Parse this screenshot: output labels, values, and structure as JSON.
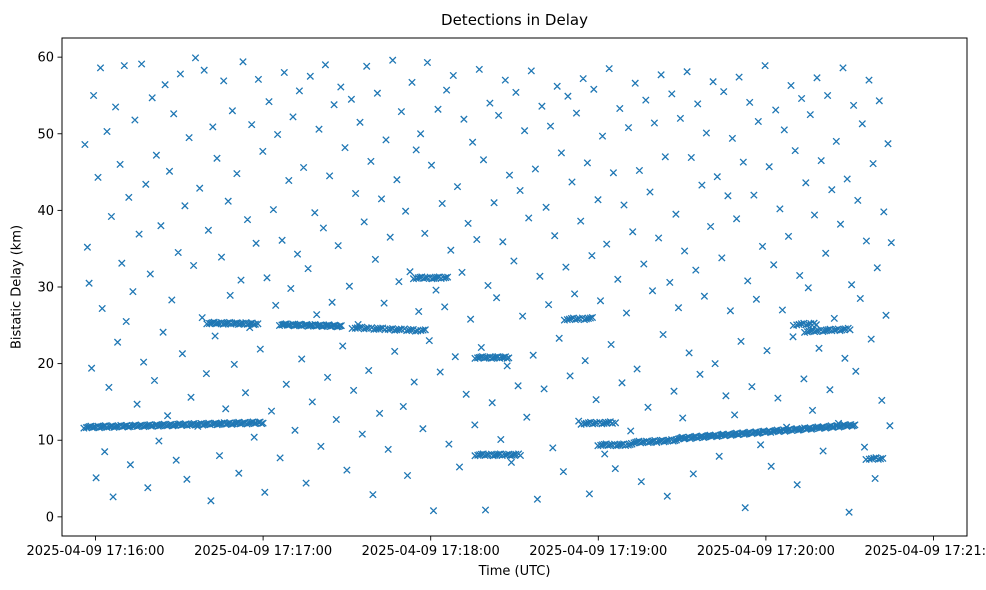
{
  "chart_data": {
    "type": "scatter",
    "title": "Detections in Delay",
    "xlabel": "Time (UTC)",
    "ylabel": "Bistatic Delay (km)",
    "marker": "x",
    "marker_color": "#1f77b4",
    "legend": "none",
    "grid": false,
    "x_unit": "seconds after 2025-04-09 17:15:00 UTC",
    "xlim": [
      48,
      372
    ],
    "ylim": [
      -2.5,
      62.5
    ],
    "y_ticks": [
      0,
      10,
      20,
      30,
      40,
      50,
      60
    ],
    "x_tick_values": [
      60,
      120,
      180,
      240,
      300,
      360
    ],
    "x_tick_labels": [
      "2025-04-09 17:16:00",
      "2025-04-09 17:17:00",
      "2025-04-09 17:18:00",
      "2025-04-09 17:19:00",
      "2025-04-09 17:20:00",
      "2025-04-09 17:21:00"
    ],
    "tracks": [
      {
        "x0": 56,
        "x1": 120,
        "y0": 11.7,
        "y1": 12.3,
        "n": 110
      },
      {
        "x0": 100,
        "x1": 118,
        "y0": 25.3,
        "y1": 25.2,
        "n": 30
      },
      {
        "x0": 126,
        "x1": 148,
        "y0": 25.1,
        "y1": 24.9,
        "n": 40
      },
      {
        "x0": 152,
        "x1": 178,
        "y0": 24.7,
        "y1": 24.3,
        "n": 32
      },
      {
        "x0": 174,
        "x1": 186,
        "y0": 31.2,
        "y1": 31.2,
        "n": 18
      },
      {
        "x0": 196,
        "x1": 208,
        "y0": 20.8,
        "y1": 20.8,
        "n": 20
      },
      {
        "x0": 196,
        "x1": 212,
        "y0": 8.1,
        "y1": 8.1,
        "n": 24
      },
      {
        "x0": 228,
        "x1": 238,
        "y0": 25.8,
        "y1": 25.9,
        "n": 14
      },
      {
        "x0": 234,
        "x1": 246,
        "y0": 12.2,
        "y1": 12.3,
        "n": 16
      },
      {
        "x0": 240,
        "x1": 252,
        "y0": 9.4,
        "y1": 9.4,
        "n": 18
      },
      {
        "x0": 252,
        "x1": 268,
        "y0": 9.7,
        "y1": 10.0,
        "n": 26
      },
      {
        "x0": 268,
        "x1": 332,
        "y0": 10.2,
        "y1": 12.0,
        "n": 120
      },
      {
        "x0": 310,
        "x1": 318,
        "y0": 25.1,
        "y1": 25.2,
        "n": 10
      },
      {
        "x0": 314,
        "x1": 330,
        "y0": 24.2,
        "y1": 24.5,
        "n": 24
      },
      {
        "x0": 336,
        "x1": 342,
        "y0": 7.6,
        "y1": 7.6,
        "n": 8
      }
    ],
    "background_points": [
      [
        56.2,
        48.6
      ],
      [
        57.1,
        35.2
      ],
      [
        57.7,
        30.5
      ],
      [
        58.6,
        19.4
      ],
      [
        59.3,
        55.0
      ],
      [
        60.2,
        5.1
      ],
      [
        60.9,
        44.3
      ],
      [
        61.8,
        58.6
      ],
      [
        62.4,
        27.2
      ],
      [
        63.3,
        8.5
      ],
      [
        64.1,
        50.3
      ],
      [
        64.8,
        16.9
      ],
      [
        65.7,
        39.2
      ],
      [
        66.3,
        2.6
      ],
      [
        67.2,
        53.5
      ],
      [
        67.9,
        22.8
      ],
      [
        68.8,
        46.0
      ],
      [
        69.4,
        33.1
      ],
      [
        70.3,
        58.9
      ],
      [
        71.0,
        25.5
      ],
      [
        71.9,
        41.7
      ],
      [
        72.5,
        6.8
      ],
      [
        73.4,
        29.4
      ],
      [
        74.1,
        51.8
      ],
      [
        74.9,
        14.7
      ],
      [
        75.6,
        36.9
      ],
      [
        76.5,
        59.1
      ],
      [
        77.2,
        20.2
      ],
      [
        78.0,
        43.4
      ],
      [
        78.7,
        3.8
      ],
      [
        79.6,
        31.7
      ],
      [
        80.3,
        54.7
      ],
      [
        81.1,
        17.8
      ],
      [
        81.8,
        47.2
      ],
      [
        82.7,
        9.9
      ],
      [
        83.4,
        38.0
      ],
      [
        84.2,
        24.1
      ],
      [
        84.9,
        56.4
      ],
      [
        85.8,
        13.2
      ],
      [
        86.5,
        45.1
      ],
      [
        87.3,
        28.3
      ],
      [
        88.0,
        52.6
      ],
      [
        88.9,
        7.4
      ],
      [
        89.6,
        34.5
      ],
      [
        90.4,
        57.8
      ],
      [
        91.1,
        21.3
      ],
      [
        92.0,
        40.6
      ],
      [
        92.7,
        4.9
      ],
      [
        93.5,
        49.5
      ],
      [
        94.2,
        15.6
      ],
      [
        95.1,
        32.8
      ],
      [
        95.8,
        59.9
      ],
      [
        96.6,
        11.8
      ],
      [
        97.3,
        42.9
      ],
      [
        98.2,
        26.0
      ],
      [
        98.9,
        58.3
      ],
      [
        99.7,
        18.7
      ],
      [
        100.4,
        37.4
      ],
      [
        101.3,
        2.1
      ],
      [
        102.0,
        50.9
      ],
      [
        102.8,
        23.6
      ],
      [
        103.5,
        46.8
      ],
      [
        104.4,
        8.0
      ],
      [
        105.1,
        33.9
      ],
      [
        105.9,
        56.9
      ],
      [
        106.6,
        14.1
      ],
      [
        107.5,
        41.2
      ],
      [
        108.2,
        28.9
      ],
      [
        109.0,
        53.0
      ],
      [
        109.7,
        19.9
      ],
      [
        110.6,
        44.8
      ],
      [
        111.3,
        5.7
      ],
      [
        112.1,
        30.9
      ],
      [
        112.8,
        59.4
      ],
      [
        113.7,
        16.2
      ],
      [
        114.4,
        38.8
      ],
      [
        115.2,
        24.7
      ],
      [
        115.9,
        51.2
      ],
      [
        116.8,
        10.4
      ],
      [
        117.5,
        35.7
      ],
      [
        118.3,
        57.1
      ],
      [
        119.0,
        21.9
      ],
      [
        119.9,
        47.7
      ],
      [
        120.6,
        3.2
      ],
      [
        121.4,
        31.2
      ],
      [
        122.1,
        54.2
      ],
      [
        123.0,
        13.8
      ],
      [
        123.7,
        40.1
      ],
      [
        124.5,
        27.6
      ],
      [
        125.2,
        49.9
      ],
      [
        126.1,
        7.7
      ],
      [
        126.8,
        36.1
      ],
      [
        127.6,
        58.0
      ],
      [
        128.3,
        17.3
      ],
      [
        129.2,
        43.9
      ],
      [
        129.9,
        29.8
      ],
      [
        130.7,
        52.2
      ],
      [
        131.4,
        11.3
      ],
      [
        132.3,
        34.3
      ],
      [
        133.0,
        55.6
      ],
      [
        133.8,
        20.6
      ],
      [
        134.5,
        45.6
      ],
      [
        135.4,
        4.4
      ],
      [
        136.1,
        32.4
      ],
      [
        136.9,
        57.5
      ],
      [
        137.6,
        15.0
      ],
      [
        138.5,
        39.7
      ],
      [
        139.2,
        26.4
      ],
      [
        140.0,
        50.6
      ],
      [
        140.7,
        9.2
      ],
      [
        141.6,
        37.7
      ],
      [
        142.3,
        59.0
      ],
      [
        143.1,
        18.2
      ],
      [
        143.8,
        44.5
      ],
      [
        144.7,
        28.0
      ],
      [
        145.4,
        53.8
      ],
      [
        146.2,
        12.7
      ],
      [
        146.9,
        35.4
      ],
      [
        147.8,
        56.1
      ],
      [
        148.5,
        22.3
      ],
      [
        149.3,
        48.2
      ],
      [
        150.0,
        6.1
      ],
      [
        150.9,
        30.1
      ],
      [
        151.6,
        54.5
      ],
      [
        152.4,
        16.5
      ],
      [
        153.1,
        42.2
      ],
      [
        154.0,
        25.1
      ],
      [
        154.7,
        51.5
      ],
      [
        155.5,
        10.8
      ],
      [
        156.2,
        38.5
      ],
      [
        157.1,
        58.8
      ],
      [
        157.8,
        19.1
      ],
      [
        158.6,
        46.4
      ],
      [
        159.3,
        2.9
      ],
      [
        160.2,
        33.6
      ],
      [
        160.9,
        55.3
      ],
      [
        161.7,
        13.5
      ],
      [
        162.4,
        41.5
      ],
      [
        163.3,
        27.9
      ],
      [
        164.0,
        49.2
      ],
      [
        164.8,
        8.8
      ],
      [
        165.5,
        36.5
      ],
      [
        166.4,
        59.6
      ],
      [
        167.1,
        21.6
      ],
      [
        167.9,
        44.0
      ],
      [
        168.6,
        30.7
      ],
      [
        169.5,
        52.9
      ],
      [
        170.2,
        14.4
      ],
      [
        171.0,
        39.9
      ],
      [
        171.7,
        5.4
      ],
      [
        172.6,
        32.0
      ],
      [
        173.3,
        56.7
      ],
      [
        174.1,
        17.6
      ],
      [
        174.8,
        47.9
      ],
      [
        175.7,
        26.8
      ],
      [
        176.4,
        50.0
      ],
      [
        177.2,
        11.5
      ],
      [
        177.9,
        37.0
      ],
      [
        178.8,
        59.3
      ],
      [
        179.5,
        23.0
      ],
      [
        180.3,
        45.9
      ],
      [
        181.0,
        0.8
      ],
      [
        181.9,
        29.6
      ],
      [
        182.6,
        53.2
      ],
      [
        183.4,
        18.9
      ],
      [
        184.1,
        40.9
      ],
      [
        185.0,
        27.4
      ],
      [
        185.7,
        55.7
      ],
      [
        186.5,
        9.5
      ],
      [
        187.2,
        34.8
      ],
      [
        188.1,
        57.6
      ],
      [
        188.8,
        20.9
      ],
      [
        189.6,
        43.1
      ],
      [
        190.3,
        6.5
      ],
      [
        191.2,
        31.9
      ],
      [
        191.9,
        51.9
      ],
      [
        192.7,
        16.0
      ],
      [
        193.4,
        38.3
      ],
      [
        194.3,
        25.8
      ],
      [
        195.0,
        48.9
      ],
      [
        195.8,
        12.0
      ],
      [
        196.5,
        36.2
      ],
      [
        197.4,
        58.4
      ],
      [
        198.1,
        22.1
      ],
      [
        198.9,
        46.6
      ],
      [
        199.6,
        0.9
      ],
      [
        200.5,
        30.2
      ],
      [
        201.2,
        54.0
      ],
      [
        202.0,
        14.9
      ],
      [
        202.7,
        41.0
      ],
      [
        203.6,
        28.6
      ],
      [
        204.3,
        52.4
      ],
      [
        205.1,
        10.1
      ],
      [
        205.8,
        35.9
      ],
      [
        206.7,
        57.0
      ],
      [
        207.4,
        19.7
      ],
      [
        208.2,
        44.6
      ],
      [
        208.9,
        7.1
      ],
      [
        209.8,
        33.4
      ],
      [
        210.5,
        55.4
      ],
      [
        211.3,
        17.1
      ],
      [
        212.0,
        42.6
      ],
      [
        212.9,
        26.2
      ],
      [
        213.6,
        50.4
      ],
      [
        214.4,
        13.0
      ],
      [
        215.1,
        39.0
      ],
      [
        216.0,
        58.2
      ],
      [
        216.7,
        21.1
      ],
      [
        217.5,
        45.4
      ],
      [
        218.2,
        2.3
      ],
      [
        219.1,
        31.4
      ],
      [
        219.8,
        53.6
      ],
      [
        220.6,
        16.7
      ],
      [
        221.3,
        40.4
      ],
      [
        222.2,
        27.7
      ],
      [
        222.9,
        51.0
      ],
      [
        223.7,
        9.0
      ],
      [
        224.4,
        36.7
      ],
      [
        225.3,
        56.2
      ],
      [
        226.0,
        23.3
      ],
      [
        226.8,
        47.5
      ],
      [
        227.5,
        5.9
      ],
      [
        228.4,
        32.6
      ],
      [
        229.1,
        54.9
      ],
      [
        229.9,
        18.4
      ],
      [
        230.6,
        43.7
      ],
      [
        231.5,
        29.1
      ],
      [
        232.2,
        52.7
      ],
      [
        233.0,
        12.5
      ],
      [
        233.7,
        38.6
      ],
      [
        234.6,
        57.2
      ],
      [
        235.3,
        20.4
      ],
      [
        236.1,
        46.2
      ],
      [
        236.8,
        3.0
      ],
      [
        237.7,
        34.1
      ],
      [
        238.4,
        55.8
      ],
      [
        239.2,
        15.3
      ],
      [
        239.9,
        41.4
      ],
      [
        240.8,
        28.2
      ],
      [
        241.5,
        49.7
      ],
      [
        242.3,
        8.2
      ],
      [
        243.0,
        35.6
      ],
      [
        243.9,
        58.5
      ],
      [
        244.6,
        22.5
      ],
      [
        245.4,
        44.9
      ],
      [
        246.1,
        6.3
      ],
      [
        247.0,
        31.0
      ],
      [
        247.7,
        53.3
      ],
      [
        248.5,
        17.5
      ],
      [
        249.2,
        40.7
      ],
      [
        250.1,
        26.6
      ],
      [
        250.8,
        50.8
      ],
      [
        251.6,
        11.2
      ],
      [
        252.3,
        37.2
      ],
      [
        253.2,
        56.6
      ],
      [
        253.9,
        19.3
      ],
      [
        254.7,
        45.2
      ],
      [
        255.4,
        4.6
      ],
      [
        256.3,
        33.0
      ],
      [
        257.0,
        54.4
      ],
      [
        257.8,
        14.3
      ],
      [
        258.5,
        42.4
      ],
      [
        259.4,
        29.5
      ],
      [
        260.1,
        51.4
      ],
      [
        260.9,
        9.7
      ],
      [
        261.6,
        36.4
      ],
      [
        262.5,
        57.7
      ],
      [
        263.2,
        23.8
      ],
      [
        264.0,
        47.0
      ],
      [
        264.7,
        2.7
      ],
      [
        265.6,
        30.6
      ],
      [
        266.3,
        55.2
      ],
      [
        267.1,
        16.4
      ],
      [
        267.8,
        39.5
      ],
      [
        268.7,
        27.3
      ],
      [
        269.4,
        52.0
      ],
      [
        270.2,
        12.9
      ],
      [
        270.9,
        34.7
      ],
      [
        271.8,
        58.1
      ],
      [
        272.5,
        21.4
      ],
      [
        273.3,
        46.9
      ],
      [
        274.0,
        5.6
      ],
      [
        274.9,
        32.2
      ],
      [
        275.6,
        53.9
      ],
      [
        276.4,
        18.6
      ],
      [
        277.1,
        43.3
      ],
      [
        278.0,
        28.8
      ],
      [
        278.7,
        50.1
      ],
      [
        279.5,
        10.6
      ],
      [
        280.2,
        37.9
      ],
      [
        281.1,
        56.8
      ],
      [
        281.8,
        20.0
      ],
      [
        282.6,
        44.4
      ],
      [
        283.3,
        7.9
      ],
      [
        284.2,
        33.8
      ],
      [
        284.9,
        55.5
      ],
      [
        285.7,
        15.8
      ],
      [
        286.4,
        41.9
      ],
      [
        287.3,
        26.9
      ],
      [
        288.0,
        49.4
      ],
      [
        288.8,
        13.3
      ],
      [
        289.5,
        38.9
      ],
      [
        290.4,
        57.4
      ],
      [
        291.1,
        22.9
      ],
      [
        291.9,
        46.3
      ],
      [
        292.6,
        1.2
      ],
      [
        293.5,
        30.8
      ],
      [
        294.2,
        54.1
      ],
      [
        295.0,
        17.0
      ],
      [
        295.7,
        42.0
      ],
      [
        296.6,
        28.4
      ],
      [
        297.3,
        51.6
      ],
      [
        298.1,
        9.4
      ],
      [
        298.8,
        35.3
      ],
      [
        299.7,
        58.9
      ],
      [
        300.4,
        21.7
      ],
      [
        301.2,
        45.7
      ],
      [
        301.9,
        6.6
      ],
      [
        302.8,
        32.9
      ],
      [
        303.5,
        53.1
      ],
      [
        304.3,
        15.5
      ],
      [
        305.0,
        40.2
      ],
      [
        305.9,
        27.0
      ],
      [
        306.6,
        50.5
      ],
      [
        307.4,
        11.7
      ],
      [
        308.1,
        36.6
      ],
      [
        309.0,
        56.3
      ],
      [
        309.7,
        23.5
      ],
      [
        310.5,
        47.8
      ],
      [
        311.2,
        4.2
      ],
      [
        312.1,
        31.5
      ],
      [
        312.8,
        54.6
      ],
      [
        313.6,
        18.0
      ],
      [
        314.3,
        43.6
      ],
      [
        315.2,
        29.9
      ],
      [
        315.9,
        52.5
      ],
      [
        316.7,
        13.9
      ],
      [
        317.4,
        39.4
      ],
      [
        318.3,
        57.3
      ],
      [
        319.0,
        22.0
      ],
      [
        319.8,
        46.5
      ],
      [
        320.5,
        8.6
      ],
      [
        321.4,
        34.4
      ],
      [
        322.1,
        55.0
      ],
      [
        322.9,
        16.6
      ],
      [
        323.6,
        42.7
      ],
      [
        324.5,
        25.9
      ],
      [
        325.2,
        49.0
      ],
      [
        326.0,
        12.2
      ],
      [
        326.7,
        38.2
      ],
      [
        327.6,
        58.6
      ],
      [
        328.3,
        20.7
      ],
      [
        329.1,
        44.1
      ],
      [
        329.8,
        0.6
      ],
      [
        330.7,
        30.3
      ],
      [
        331.4,
        53.7
      ],
      [
        332.2,
        19.0
      ],
      [
        332.9,
        41.3
      ],
      [
        333.8,
        28.5
      ],
      [
        334.5,
        51.3
      ],
      [
        335.3,
        9.1
      ],
      [
        336.0,
        36.0
      ],
      [
        336.9,
        57.0
      ],
      [
        337.7,
        23.2
      ],
      [
        338.4,
        46.1
      ],
      [
        339.1,
        5.0
      ],
      [
        339.9,
        32.5
      ],
      [
        340.6,
        54.3
      ],
      [
        341.5,
        15.2
      ],
      [
        342.2,
        39.8
      ],
      [
        343.0,
        26.3
      ],
      [
        343.7,
        48.7
      ],
      [
        344.4,
        11.9
      ],
      [
        344.9,
        35.8
      ]
    ]
  }
}
